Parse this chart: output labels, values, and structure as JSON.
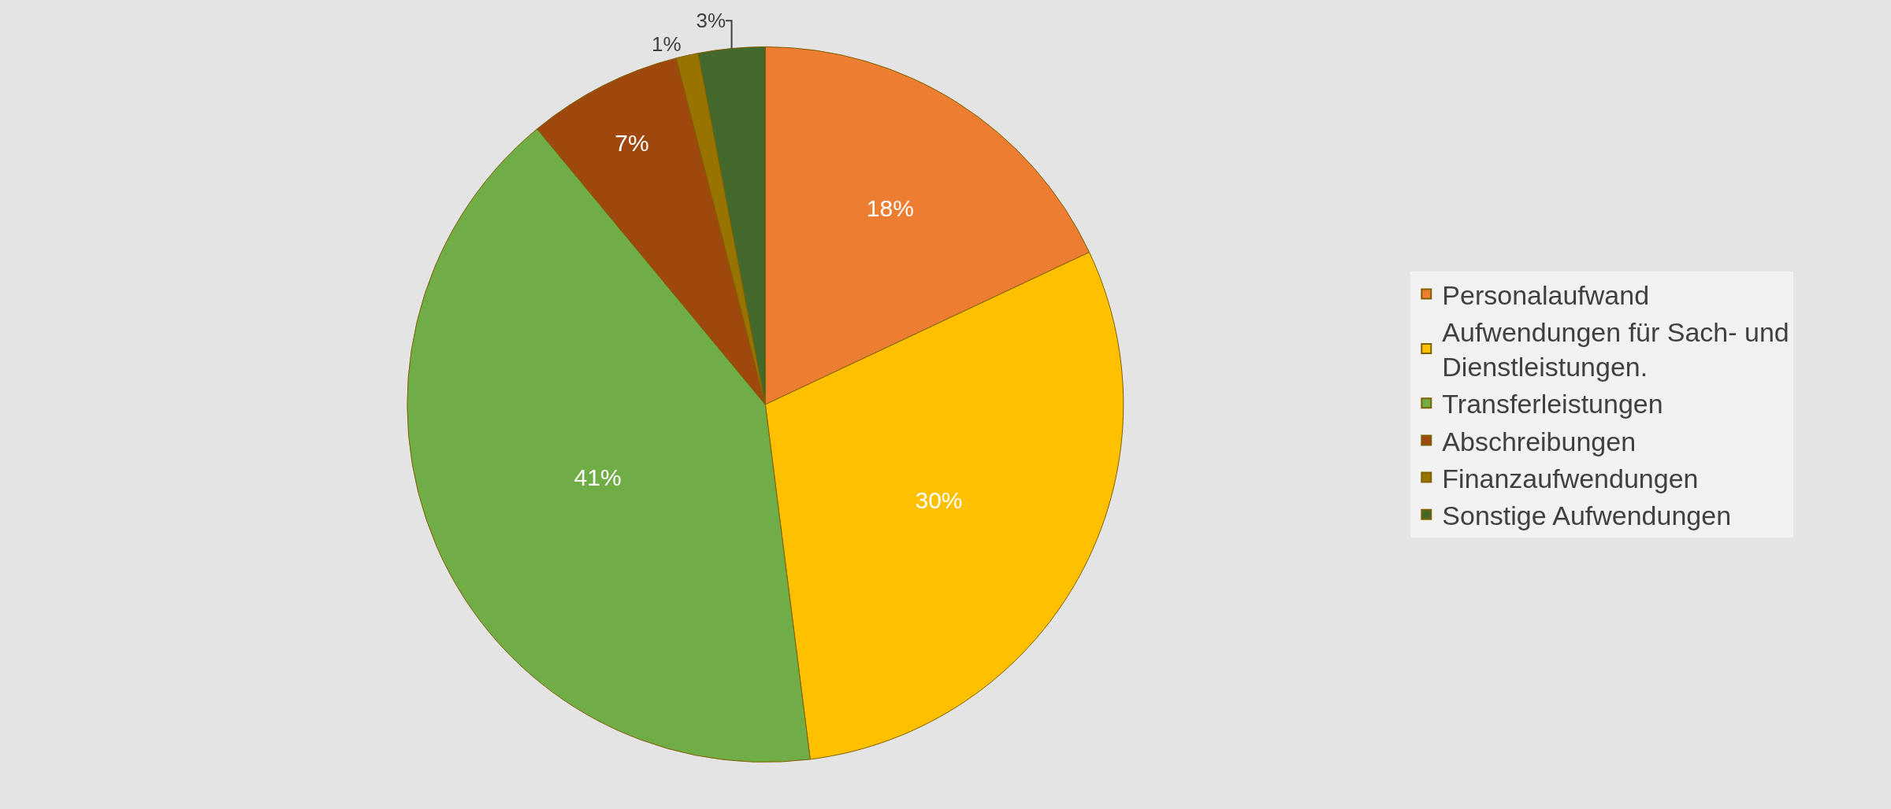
{
  "chart_data": {
    "type": "pie",
    "categories": [
      "Personalaufwand",
      "Aufwendungen für Sach- und Dienstleistungen.",
      "Transferleistungen",
      "Abschreibungen",
      "Finanzaufwendungen",
      "Sonstige Aufwendungen"
    ],
    "values": [
      18,
      30,
      41,
      7,
      1,
      3
    ],
    "colors": [
      "#ed7d31",
      "#ffc000",
      "#70ad47",
      "#9e480e",
      "#997300",
      "#43682b"
    ],
    "value_labels": [
      "18%",
      "30%",
      "41%",
      "7%",
      "1%",
      "3%"
    ],
    "legend": "right"
  }
}
